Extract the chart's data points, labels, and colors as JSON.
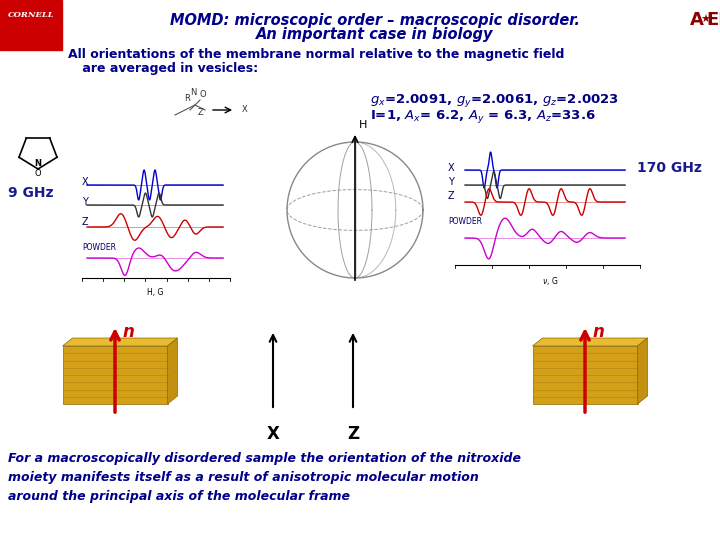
{
  "title_line1": "MOMD: microscopic order – macroscopic disorder.",
  "title_line2": "An important case in biology",
  "subtitle_line1": "All orientations of the membrane normal relative to the magnetic field",
  "subtitle_line2": " are averaged in vesicles:",
  "params_line1": "$g_x$=2.0091, $g_y$=2.0061, $g_z$=2.0023",
  "params_line2": "I=1, $A_x$= 6.2, $A_y$ = 6.3, $A_z$=33.6",
  "label_9ghz": "9 GHz",
  "label_170ghz": "170 GHz",
  "label_x": "X",
  "label_z": "Z",
  "label_n": "n",
  "footer_text": "For a macroscopically disordered sample the orientation of the nitroxide\nmoiety manifests itself as a result of anisotropic molecular motion\naround the principal axis of the molecular frame",
  "bg_color": "#ffffff",
  "title_color": "#00008B",
  "subtitle_color": "#00008B",
  "params_color": "#000080",
  "footer_color": "#00008B",
  "ghz_color": "#1a1a8c",
  "cornell_bg": "#cc0000",
  "cornell_text": "#ffffff",
  "n_color": "#cc0000",
  "spec_x_color": "#0000cc",
  "spec_y_color": "#333333",
  "spec_z_color": "#cc0000",
  "spec_powder_color": "#cc00cc",
  "sphere_color": "#888888",
  "bilayer_color": "#D4A017",
  "bilayer_dark": "#8B6508"
}
